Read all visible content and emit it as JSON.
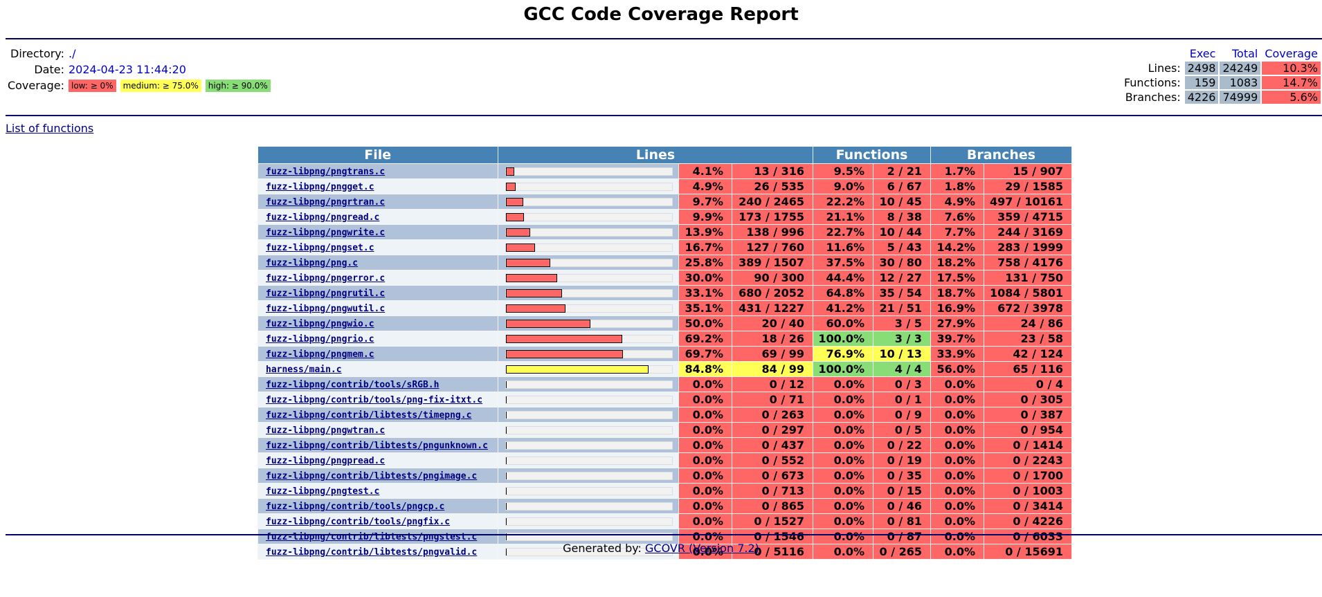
{
  "page": {
    "title": "GCC Code Coverage Report",
    "list_of_functions": "List of functions",
    "footer_prefix": "Generated by: ",
    "footer_link": "GCOVR (Version 7.2)"
  },
  "header": {
    "directory_label": "Directory:",
    "directory_value": "./",
    "date_label": "Date:",
    "date_value": "2024-04-23 11:44:20",
    "coverage_label": "Coverage:",
    "legend": {
      "low": "low: ≥ 0%",
      "medium": "medium: ≥ 75.0%",
      "high": "high: ≥ 90.0%"
    }
  },
  "summary": {
    "col_exec": "Exec",
    "col_total": "Total",
    "col_coverage": "Coverage",
    "lines": {
      "label": "Lines:",
      "exec": "2498",
      "total": "24249",
      "coverage": "10.3%"
    },
    "functions": {
      "label": "Functions:",
      "exec": "159",
      "total": "1083",
      "coverage": "14.7%"
    },
    "branches": {
      "label": "Branches:",
      "exec": "4226",
      "total": "74999",
      "coverage": "5.6%"
    }
  },
  "table": {
    "headers": {
      "file": "File",
      "lines": "Lines",
      "functions": "Functions",
      "branches": "Branches"
    },
    "rows": [
      {
        "file": "fuzz-libpng/pngtrans.c",
        "lines_pct": "4.1%",
        "lines_cnt": "13 / 316",
        "func_pct": "9.5%",
        "func_cnt": "2 / 21",
        "br_pct": "1.7%",
        "br_cnt": "15 / 907"
      },
      {
        "file": "fuzz-libpng/pngget.c",
        "lines_pct": "4.9%",
        "lines_cnt": "26 / 535",
        "func_pct": "9.0%",
        "func_cnt": "6 / 67",
        "br_pct": "1.8%",
        "br_cnt": "29 / 1585"
      },
      {
        "file": "fuzz-libpng/pngrtran.c",
        "lines_pct": "9.7%",
        "lines_cnt": "240 / 2465",
        "func_pct": "22.2%",
        "func_cnt": "10 / 45",
        "br_pct": "4.9%",
        "br_cnt": "497 / 10161"
      },
      {
        "file": "fuzz-libpng/pngread.c",
        "lines_pct": "9.9%",
        "lines_cnt": "173 / 1755",
        "func_pct": "21.1%",
        "func_cnt": "8 / 38",
        "br_pct": "7.6%",
        "br_cnt": "359 / 4715"
      },
      {
        "file": "fuzz-libpng/pngwrite.c",
        "lines_pct": "13.9%",
        "lines_cnt": "138 / 996",
        "func_pct": "22.7%",
        "func_cnt": "10 / 44",
        "br_pct": "7.7%",
        "br_cnt": "244 / 3169"
      },
      {
        "file": "fuzz-libpng/pngset.c",
        "lines_pct": "16.7%",
        "lines_cnt": "127 / 760",
        "func_pct": "11.6%",
        "func_cnt": "5 / 43",
        "br_pct": "14.2%",
        "br_cnt": "283 / 1999"
      },
      {
        "file": "fuzz-libpng/png.c",
        "lines_pct": "25.8%",
        "lines_cnt": "389 / 1507",
        "func_pct": "37.5%",
        "func_cnt": "30 / 80",
        "br_pct": "18.2%",
        "br_cnt": "758 / 4176"
      },
      {
        "file": "fuzz-libpng/pngerror.c",
        "lines_pct": "30.0%",
        "lines_cnt": "90 / 300",
        "func_pct": "44.4%",
        "func_cnt": "12 / 27",
        "br_pct": "17.5%",
        "br_cnt": "131 / 750"
      },
      {
        "file": "fuzz-libpng/pngrutil.c",
        "lines_pct": "33.1%",
        "lines_cnt": "680 / 2052",
        "func_pct": "64.8%",
        "func_cnt": "35 / 54",
        "br_pct": "18.7%",
        "br_cnt": "1084 / 5801"
      },
      {
        "file": "fuzz-libpng/pngwutil.c",
        "lines_pct": "35.1%",
        "lines_cnt": "431 / 1227",
        "func_pct": "41.2%",
        "func_cnt": "21 / 51",
        "br_pct": "16.9%",
        "br_cnt": "672 / 3978"
      },
      {
        "file": "fuzz-libpng/pngwio.c",
        "lines_pct": "50.0%",
        "lines_cnt": "20 / 40",
        "func_pct": "60.0%",
        "func_cnt": "3 / 5",
        "br_pct": "27.9%",
        "br_cnt": "24 / 86"
      },
      {
        "file": "fuzz-libpng/pngrio.c",
        "lines_pct": "69.2%",
        "lines_cnt": "18 / 26",
        "func_pct": "100.0%",
        "func_cnt": "3 / 3",
        "br_pct": "39.7%",
        "br_cnt": "23 / 58"
      },
      {
        "file": "fuzz-libpng/pngmem.c",
        "lines_pct": "69.7%",
        "lines_cnt": "69 / 99",
        "func_pct": "76.9%",
        "func_cnt": "10 / 13",
        "br_pct": "33.9%",
        "br_cnt": "42 / 124"
      },
      {
        "file": "harness/main.c",
        "lines_pct": "84.8%",
        "lines_cnt": "84 / 99",
        "func_pct": "100.0%",
        "func_cnt": "4 / 4",
        "br_pct": "56.0%",
        "br_cnt": "65 / 116"
      },
      {
        "file": "fuzz-libpng/contrib/tools/sRGB.h",
        "lines_pct": "0.0%",
        "lines_cnt": "0 / 12",
        "func_pct": "0.0%",
        "func_cnt": "0 / 3",
        "br_pct": "0.0%",
        "br_cnt": "0 / 4"
      },
      {
        "file": "fuzz-libpng/contrib/tools/png-fix-itxt.c",
        "lines_pct": "0.0%",
        "lines_cnt": "0 / 71",
        "func_pct": "0.0%",
        "func_cnt": "0 / 1",
        "br_pct": "0.0%",
        "br_cnt": "0 / 305"
      },
      {
        "file": "fuzz-libpng/contrib/libtests/timepng.c",
        "lines_pct": "0.0%",
        "lines_cnt": "0 / 263",
        "func_pct": "0.0%",
        "func_cnt": "0 / 9",
        "br_pct": "0.0%",
        "br_cnt": "0 / 387"
      },
      {
        "file": "fuzz-libpng/pngwtran.c",
        "lines_pct": "0.0%",
        "lines_cnt": "0 / 297",
        "func_pct": "0.0%",
        "func_cnt": "0 / 5",
        "br_pct": "0.0%",
        "br_cnt": "0 / 954"
      },
      {
        "file": "fuzz-libpng/contrib/libtests/pngunknown.c",
        "lines_pct": "0.0%",
        "lines_cnt": "0 / 437",
        "func_pct": "0.0%",
        "func_cnt": "0 / 22",
        "br_pct": "0.0%",
        "br_cnt": "0 / 1414"
      },
      {
        "file": "fuzz-libpng/pngpread.c",
        "lines_pct": "0.0%",
        "lines_cnt": "0 / 552",
        "func_pct": "0.0%",
        "func_cnt": "0 / 19",
        "br_pct": "0.0%",
        "br_cnt": "0 / 2243"
      },
      {
        "file": "fuzz-libpng/contrib/libtests/pngimage.c",
        "lines_pct": "0.0%",
        "lines_cnt": "0 / 673",
        "func_pct": "0.0%",
        "func_cnt": "0 / 35",
        "br_pct": "0.0%",
        "br_cnt": "0 / 1700"
      },
      {
        "file": "fuzz-libpng/pngtest.c",
        "lines_pct": "0.0%",
        "lines_cnt": "0 / 713",
        "func_pct": "0.0%",
        "func_cnt": "0 / 15",
        "br_pct": "0.0%",
        "br_cnt": "0 / 1003"
      },
      {
        "file": "fuzz-libpng/contrib/tools/pngcp.c",
        "lines_pct": "0.0%",
        "lines_cnt": "0 / 865",
        "func_pct": "0.0%",
        "func_cnt": "0 / 46",
        "br_pct": "0.0%",
        "br_cnt": "0 / 3414"
      },
      {
        "file": "fuzz-libpng/contrib/tools/pngfix.c",
        "lines_pct": "0.0%",
        "lines_cnt": "0 / 1527",
        "func_pct": "0.0%",
        "func_cnt": "0 / 81",
        "br_pct": "0.0%",
        "br_cnt": "0 / 4226"
      },
      {
        "file": "fuzz-libpng/contrib/libtests/pngstest.c",
        "lines_pct": "0.0%",
        "lines_cnt": "0 / 1546",
        "func_pct": "0.0%",
        "func_cnt": "0 / 87",
        "br_pct": "0.0%",
        "br_cnt": "0 / 6033"
      },
      {
        "file": "fuzz-libpng/contrib/libtests/pngvalid.c",
        "lines_pct": "0.0%",
        "lines_cnt": "0 / 5116",
        "func_pct": "0.0%",
        "func_cnt": "0 / 265",
        "br_pct": "0.0%",
        "br_cnt": "0 / 15691"
      }
    ]
  },
  "colors": {
    "low": "#ff6666",
    "medium": "#ffff55",
    "high": "#88dd77",
    "header": "#4682b4"
  }
}
